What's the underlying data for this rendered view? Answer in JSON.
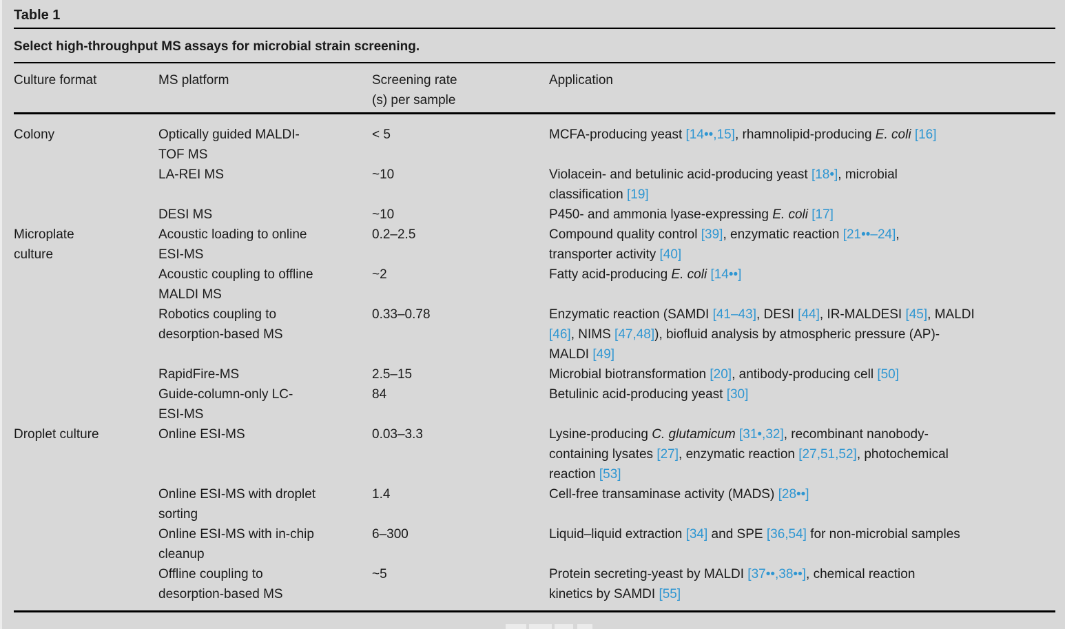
{
  "page": {
    "label": "Table 1",
    "caption": "Select high-throughput MS assays for microbial strain screening.",
    "background": "#d8d8d8",
    "text_color": "#1a1a1a",
    "citation_color": "#2e96d2",
    "rule_color": "#000000"
  },
  "table": {
    "headers": [
      "Culture format",
      "MS platform",
      "Screening rate\n(s) per sample",
      "Application"
    ],
    "rows": [
      {
        "culture_format": "Colony",
        "ms_platform": "Optically guided MALDI-\nTOF MS",
        "screening_rate": "< 5",
        "application": [
          {
            "t": "MCFA-producing yeast "
          },
          {
            "t": "[14••,15]",
            "s": "cite"
          },
          {
            "t": ", rhamnolipid-producing "
          },
          {
            "t": "E. coli",
            "s": "italic"
          },
          {
            "t": " "
          },
          {
            "t": "[16]",
            "s": "cite"
          }
        ]
      },
      {
        "culture_format": "",
        "ms_platform": "LA-REI MS",
        "screening_rate": "~10",
        "application": [
          {
            "t": "Violacein- and betulinic acid-producing yeast "
          },
          {
            "t": "[18•]",
            "s": "cite"
          },
          {
            "t": ", microbial\nclassification "
          },
          {
            "t": "[19]",
            "s": "cite"
          }
        ]
      },
      {
        "culture_format": "",
        "ms_platform": "DESI MS",
        "screening_rate": "~10",
        "application": [
          {
            "t": "P450- and ammonia lyase-expressing "
          },
          {
            "t": "E. coli",
            "s": "italic"
          },
          {
            "t": " "
          },
          {
            "t": "[17]",
            "s": "cite"
          }
        ]
      },
      {
        "culture_format": "Microplate\nculture",
        "ms_platform": "Acoustic loading to online\nESI-MS",
        "screening_rate": "0.2–2.5",
        "application": [
          {
            "t": "Compound quality control "
          },
          {
            "t": "[39]",
            "s": "cite"
          },
          {
            "t": ", enzymatic reaction "
          },
          {
            "t": "[21••–24]",
            "s": "cite"
          },
          {
            "t": ",\ntransporter activity "
          },
          {
            "t": "[40]",
            "s": "cite"
          }
        ]
      },
      {
        "culture_format": "",
        "ms_platform": "Acoustic coupling to offline\nMALDI MS",
        "screening_rate": "~2",
        "application": [
          {
            "t": "Fatty acid-producing "
          },
          {
            "t": "E. coli",
            "s": "italic"
          },
          {
            "t": " "
          },
          {
            "t": "[14••]",
            "s": "cite"
          }
        ]
      },
      {
        "culture_format": "",
        "ms_platform": "Robotics coupling to\ndesorption-based MS",
        "screening_rate": "0.33–0.78",
        "application": [
          {
            "t": "Enzymatic reaction (SAMDI "
          },
          {
            "t": "[41–43]",
            "s": "cite"
          },
          {
            "t": ", DESI "
          },
          {
            "t": "[44]",
            "s": "cite"
          },
          {
            "t": ", IR-MALDESI "
          },
          {
            "t": "[45]",
            "s": "cite"
          },
          {
            "t": ", MALDI\n"
          },
          {
            "t": "[46]",
            "s": "cite"
          },
          {
            "t": ", NIMS "
          },
          {
            "t": "[47,48]",
            "s": "cite"
          },
          {
            "t": "), biofluid analysis by atmospheric pressure (AP)-\nMALDI "
          },
          {
            "t": "[49]",
            "s": "cite"
          }
        ]
      },
      {
        "culture_format": "",
        "ms_platform": "RapidFire-MS",
        "screening_rate": "2.5–15",
        "application": [
          {
            "t": "Microbial biotransformation "
          },
          {
            "t": "[20]",
            "s": "cite"
          },
          {
            "t": ", antibody-producing cell "
          },
          {
            "t": "[50]",
            "s": "cite"
          }
        ]
      },
      {
        "culture_format": "",
        "ms_platform": "Guide-column-only LC-\nESI-MS",
        "screening_rate": "84",
        "application": [
          {
            "t": "Betulinic acid-producing yeast "
          },
          {
            "t": "[30]",
            "s": "cite"
          }
        ]
      },
      {
        "culture_format": "Droplet culture",
        "ms_platform": "Online ESI-MS",
        "screening_rate": "0.03–3.3",
        "application": [
          {
            "t": "Lysine-producing "
          },
          {
            "t": "C. glutamicum",
            "s": "italic"
          },
          {
            "t": " "
          },
          {
            "t": "[31•,32]",
            "s": "cite"
          },
          {
            "t": ", recombinant nanobody-\ncontaining lysates "
          },
          {
            "t": "[27]",
            "s": "cite"
          },
          {
            "t": ", enzymatic reaction "
          },
          {
            "t": "[27,51,52]",
            "s": "cite"
          },
          {
            "t": ", photochemical\nreaction "
          },
          {
            "t": "[53]",
            "s": "cite"
          }
        ]
      },
      {
        "culture_format": "",
        "ms_platform": "Online ESI-MS with droplet\nsorting",
        "screening_rate": "1.4",
        "application": [
          {
            "t": "Cell-free transaminase activity (MADS) "
          },
          {
            "t": "[28••]",
            "s": "cite"
          }
        ]
      },
      {
        "culture_format": "",
        "ms_platform": "Online ESI-MS with in-chip\ncleanup",
        "screening_rate": "6–300",
        "application": [
          {
            "t": "Liquid–liquid extraction "
          },
          {
            "t": "[34]",
            "s": "cite"
          },
          {
            "t": " and SPE "
          },
          {
            "t": "[36,54]",
            "s": "cite"
          },
          {
            "t": " for non-microbial samples"
          }
        ]
      },
      {
        "culture_format": "",
        "ms_platform": "Offline coupling to\ndesorption-based MS",
        "screening_rate": "~5",
        "application": [
          {
            "t": "Protein secreting-yeast by MALDI "
          },
          {
            "t": "[37••,38••]",
            "s": "cite"
          },
          {
            "t": ", chemical reaction\nkinetics by SAMDI "
          },
          {
            "t": "[55]",
            "s": "cite"
          }
        ]
      }
    ]
  }
}
